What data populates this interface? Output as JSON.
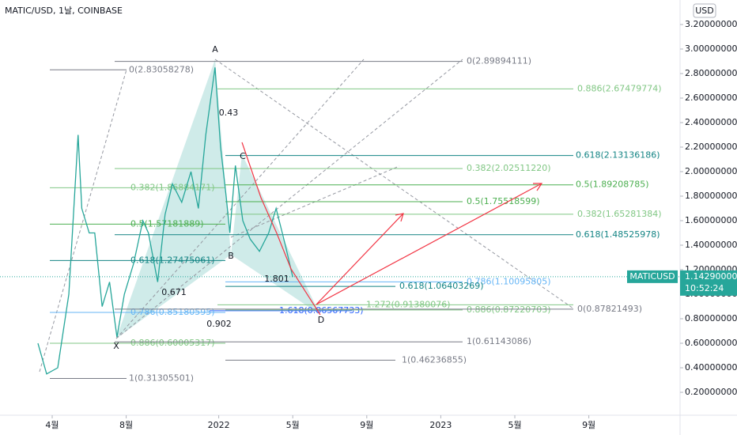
{
  "header": {
    "symbol": "MATIC/USD, 1날, COINBASE",
    "currency": "USD"
  },
  "chart_data": {
    "type": "line",
    "x": [
      -0.77,
      -0.3,
      0.3,
      0.9,
      1.4,
      1.6,
      2.0,
      2.3,
      2.7,
      3.1,
      3.5,
      3.9,
      4.4,
      4.9,
      5.2,
      5.7,
      6.1,
      6.5,
      7.0,
      7.5,
      7.9,
      8.3,
      8.8,
      9.1,
      9.4,
      9.6,
      9.9,
      10.3,
      10.7,
      11.2,
      11.7,
      12.1,
      12.6,
      13.0
    ],
    "series": [
      {
        "name": "MATICUSD",
        "color": "#26a69a",
        "values": [
          0.6,
          0.35,
          0.4,
          1.0,
          2.3,
          1.7,
          1.5,
          1.5,
          0.9,
          1.1,
          0.65,
          1.0,
          1.25,
          1.6,
          1.5,
          1.1,
          1.65,
          1.9,
          1.75,
          2.0,
          1.7,
          2.3,
          2.85,
          2.2,
          1.8,
          1.5,
          2.05,
          1.6,
          1.45,
          1.35,
          1.5,
          1.7,
          1.4,
          1.14
        ]
      }
    ],
    "xlim": [
      -2.82,
      33.93
    ],
    "xticks": [
      {
        "value": 0,
        "label": "4월"
      },
      {
        "value": 4,
        "label": "8월"
      },
      {
        "value": 9,
        "label": "2022"
      },
      {
        "value": 13,
        "label": "5월"
      },
      {
        "value": 17,
        "label": "9월"
      },
      {
        "value": 21,
        "label": "2023"
      },
      {
        "value": 25,
        "label": "5월"
      },
      {
        "value": 29,
        "label": "9월"
      }
    ],
    "ylim": [
      0.013,
      3.4
    ],
    "yticks": [
      {
        "value": 3.2,
        "label": "3.20000000"
      },
      {
        "value": 3.0,
        "label": "3.00000000"
      },
      {
        "value": 2.8,
        "label": "2.80000000"
      },
      {
        "value": 2.6,
        "label": "2.60000000"
      },
      {
        "value": 2.4,
        "label": "2.40000000"
      },
      {
        "value": 2.2,
        "label": "2.20000000"
      },
      {
        "value": 2.0,
        "label": "2.00000000"
      },
      {
        "value": 1.8,
        "label": "1.80000000"
      },
      {
        "value": 1.6,
        "label": "1.60000000"
      },
      {
        "value": 1.4,
        "label": "1.40000000"
      },
      {
        "value": 1.2,
        "label": "1.20000000"
      },
      {
        "value": 1.0,
        "label": "1.00000000"
      },
      {
        "value": 0.8,
        "label": "0.80000000"
      },
      {
        "value": 0.6,
        "label": "0.60000000"
      },
      {
        "value": 0.4,
        "label": "0.40000000"
      },
      {
        "value": 0.2,
        "label": "0.20000000"
      }
    ],
    "last_price": {
      "symbol": "MATICUSD",
      "price": {
        "value": 1.1429,
        "label": "1.14290000"
      },
      "countdown": "10:52:24",
      "color": "#26a69a"
    },
    "fib_levels": [
      {
        "label": "0(2.83058278)",
        "price": 2.83058278,
        "color": "#787b86"
      },
      {
        "label": "0(2.89894111)",
        "price": 2.89894111,
        "color": "#787b86"
      },
      {
        "label": "0.886(2.67479774)",
        "price": 2.67479774,
        "color": "#81c784"
      },
      {
        "label": "0.618(2.13136186)",
        "price": 2.13136186,
        "color": "#138484"
      },
      {
        "label": "0.382(2.02511220)",
        "price": 2.0251122,
        "color": "#81c784"
      },
      {
        "label": "0.382(1.86884171)",
        "price": 1.86884171,
        "color": "#81c784"
      },
      {
        "label": "0.5(1.89208785)",
        "price": 1.89208785,
        "color": "#4caf50"
      },
      {
        "label": "0.5(1.75518599)",
        "price": 1.75518599,
        "color": "#4caf50"
      },
      {
        "label": "0.5(1.57181889)",
        "price": 1.57181889,
        "color": "#4caf50"
      },
      {
        "label": "0.382(1.65281384)",
        "price": 1.65281384,
        "color": "#81c784"
      },
      {
        "label": "0.618(1.48525978)",
        "price": 1.48525978,
        "color": "#138484"
      },
      {
        "label": "0.618(1.27475061)",
        "price": 1.27475061,
        "color": "#138484"
      },
      {
        "label": "0.786(1.10095805)",
        "price": 1.10095805,
        "color": "#64b5f6"
      },
      {
        "label": "0.618(1.06403269)",
        "price": 1.06403269,
        "color": "#138484"
      },
      {
        "label": "1.272(0.91380076)",
        "price": 0.91380076,
        "color": "#81c784"
      },
      {
        "label": "1.618(0.86567733)",
        "price": 0.86567733,
        "color": "#2962ff"
      },
      {
        "label": "0.886(0.87220703)",
        "price": 0.87220703,
        "color": "#81c784"
      },
      {
        "label": "0.786(0.85180595)",
        "price": 0.85180595,
        "color": "#64b5f6"
      },
      {
        "label": "0(0.87821493)",
        "price": 0.87821493,
        "color": "#787b86"
      },
      {
        "label": "0.886(0.60005317)",
        "price": 0.60005317,
        "color": "#81c784"
      },
      {
        "label": "1(0.61143086)",
        "price": 0.61143086,
        "color": "#787b86"
      },
      {
        "label": "1(0.46236855)",
        "price": 0.46236855,
        "color": "#787b86"
      },
      {
        "label": "1(0.31305501)",
        "price": 0.31305501,
        "color": "#787b86"
      }
    ],
    "pattern_labels": [
      "A",
      "X",
      "B",
      "C",
      "D",
      "0.43",
      "0.671",
      "0.902",
      "1.801"
    ]
  }
}
